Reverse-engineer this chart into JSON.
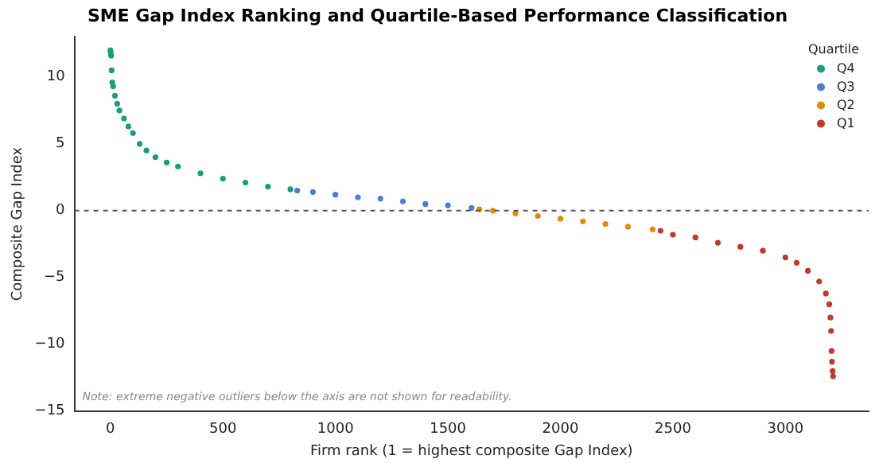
{
  "chart_data": {
    "type": "scatter",
    "title": "SME Gap Index Ranking and Quartile-Based Performance Classification",
    "xlabel": "Firm rank (1 = highest composite Gap Index)",
    "ylabel": "Composite Gap Index",
    "legend_title": "Quartile",
    "legend": "top right",
    "grid": false,
    "marker": "circle",
    "xlim": [
      -160,
      3370
    ],
    "xticks": [
      0,
      500,
      1000,
      1500,
      2000,
      2500,
      3000
    ],
    "ylim": [
      -15,
      13
    ],
    "yticks": [
      -15,
      -10,
      -5,
      0,
      5,
      10
    ],
    "ref_lines": [
      {
        "axis": "y",
        "value": 0,
        "color": "#555555",
        "line_style": "dashed"
      }
    ],
    "annotations": [
      "Note: extreme negative outliers below the axis are not shown for readability."
    ],
    "series": [
      {
        "name": "Q4",
        "color": "#1a9e77",
        "x": [
          0,
          1,
          3,
          5,
          8,
          12,
          20,
          30,
          40,
          60,
          80,
          100,
          130,
          160,
          200,
          250,
          300,
          400,
          500,
          600,
          700,
          800
        ],
        "values": [
          12.0,
          11.8,
          11.6,
          10.5,
          9.6,
          9.3,
          8.6,
          8.0,
          7.5,
          6.9,
          6.3,
          5.8,
          5.0,
          4.5,
          4.0,
          3.6,
          3.3,
          2.8,
          2.4,
          2.1,
          1.8,
          1.6
        ]
      },
      {
        "name": "Q3",
        "color": "#4a7fd4",
        "x": [
          830,
          900,
          1000,
          1100,
          1200,
          1300,
          1400,
          1500,
          1605
        ],
        "values": [
          1.5,
          1.4,
          1.2,
          1.0,
          0.9,
          0.7,
          0.5,
          0.4,
          0.2
        ]
      },
      {
        "name": "Q2",
        "color": "#e08c0b",
        "x": [
          1640,
          1700,
          1800,
          1900,
          2000,
          2100,
          2200,
          2300,
          2410
        ],
        "values": [
          0.1,
          0.0,
          -0.2,
          -0.4,
          -0.6,
          -0.8,
          -1.0,
          -1.2,
          -1.4
        ]
      },
      {
        "name": "Q1",
        "color": "#c0392b",
        "x": [
          2445,
          2500,
          2600,
          2700,
          2800,
          2900,
          3000,
          3050,
          3100,
          3150,
          3180,
          3195,
          3200,
          3203,
          3205,
          3207,
          3210,
          3212
        ],
        "values": [
          -1.5,
          -1.8,
          -2.0,
          -2.4,
          -2.7,
          -3.0,
          -3.5,
          -3.9,
          -4.5,
          -5.3,
          -6.2,
          -7.0,
          -8.0,
          -9.0,
          -10.5,
          -11.3,
          -12.0,
          -12.4
        ]
      }
    ]
  }
}
